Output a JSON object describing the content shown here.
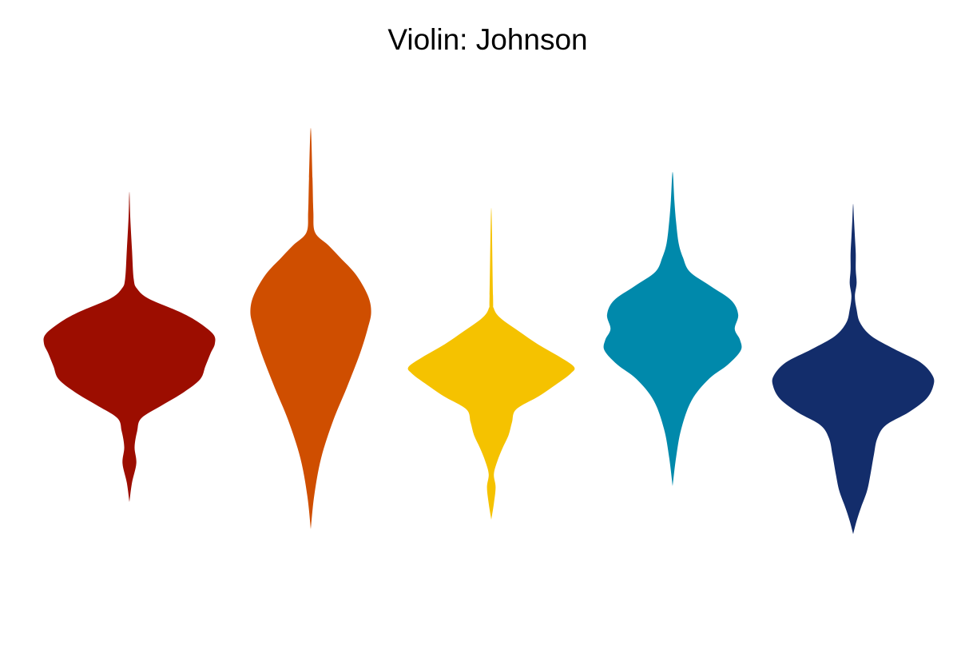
{
  "chart_data": {
    "type": "violin",
    "title": "Violin: Johnson",
    "xlabel": "",
    "ylabel": "",
    "axes_visible": false,
    "grid": false,
    "legend": "none",
    "ylim": [
      0,
      100
    ],
    "series": [
      {
        "color": "#9c0d00",
        "min": 4,
        "max": 100,
        "profile": [
          [
            4,
            0.0
          ],
          [
            10,
            0.03
          ],
          [
            16,
            0.08
          ],
          [
            21,
            0.06
          ],
          [
            26,
            0.09
          ],
          [
            30,
            0.14
          ],
          [
            34,
            0.38
          ],
          [
            38,
            0.63
          ],
          [
            42,
            0.82
          ],
          [
            46,
            0.88
          ],
          [
            50,
            0.94
          ],
          [
            53,
            0.99
          ],
          [
            56,
            0.97
          ],
          [
            60,
            0.78
          ],
          [
            63,
            0.57
          ],
          [
            67,
            0.22
          ],
          [
            70,
            0.09
          ],
          [
            73,
            0.05
          ],
          [
            82,
            0.03
          ],
          [
            92,
            0.01
          ],
          [
            100,
            0.0
          ]
        ]
      },
      {
        "color": "#cf4e00",
        "min": 4,
        "max": 100,
        "profile": [
          [
            4,
            0.0
          ],
          [
            12,
            0.04
          ],
          [
            21,
            0.12
          ],
          [
            30,
            0.26
          ],
          [
            38,
            0.42
          ],
          [
            46,
            0.57
          ],
          [
            52,
            0.66
          ],
          [
            56,
            0.7
          ],
          [
            60,
            0.66
          ],
          [
            65,
            0.52
          ],
          [
            69,
            0.34
          ],
          [
            72,
            0.2
          ],
          [
            75,
            0.05
          ],
          [
            80,
            0.03
          ],
          [
            88,
            0.02
          ],
          [
            100,
            0.0
          ]
        ]
      },
      {
        "color": "#f5c200",
        "min": 4,
        "max": 100,
        "profile": [
          [
            4,
            0.0
          ],
          [
            9,
            0.03
          ],
          [
            14,
            0.05
          ],
          [
            18,
            0.03
          ],
          [
            22,
            0.07
          ],
          [
            26,
            0.13
          ],
          [
            30,
            0.2
          ],
          [
            34,
            0.24
          ],
          [
            38,
            0.29
          ],
          [
            42,
            0.55
          ],
          [
            46,
            0.77
          ],
          [
            49,
            0.92
          ],
          [
            51,
            0.96
          ],
          [
            54,
            0.8
          ],
          [
            58,
            0.54
          ],
          [
            62,
            0.32
          ],
          [
            66,
            0.11
          ],
          [
            69,
            0.03
          ],
          [
            73,
            0.02
          ],
          [
            100,
            0.0
          ]
        ]
      },
      {
        "color": "#0089ab",
        "min": 12,
        "max": 100,
        "profile": [
          [
            12,
            0.0
          ],
          [
            20,
            0.04
          ],
          [
            28,
            0.1
          ],
          [
            36,
            0.22
          ],
          [
            42,
            0.42
          ],
          [
            46,
            0.64
          ],
          [
            50,
            0.79
          ],
          [
            53,
            0.78
          ],
          [
            56,
            0.72
          ],
          [
            60,
            0.76
          ],
          [
            64,
            0.68
          ],
          [
            68,
            0.44
          ],
          [
            72,
            0.2
          ],
          [
            76,
            0.12
          ],
          [
            80,
            0.07
          ],
          [
            86,
            0.04
          ],
          [
            92,
            0.02
          ],
          [
            100,
            0.0
          ]
        ]
      },
      {
        "color": "#132d6b",
        "min": 0,
        "max": 100,
        "profile": [
          [
            0,
            0.0
          ],
          [
            4,
            0.04
          ],
          [
            8,
            0.09
          ],
          [
            13,
            0.16
          ],
          [
            18,
            0.2
          ],
          [
            24,
            0.24
          ],
          [
            29,
            0.28
          ],
          [
            33,
            0.38
          ],
          [
            37,
            0.65
          ],
          [
            41,
            0.85
          ],
          [
            45,
            0.93
          ],
          [
            48,
            0.92
          ],
          [
            52,
            0.78
          ],
          [
            56,
            0.48
          ],
          [
            60,
            0.21
          ],
          [
            64,
            0.08
          ],
          [
            68,
            0.04
          ],
          [
            72,
            0.02
          ],
          [
            76,
            0.04
          ],
          [
            80,
            0.03
          ],
          [
            85,
            0.03
          ],
          [
            90,
            0.02
          ],
          [
            95,
            0.01
          ],
          [
            100,
            0.0
          ]
        ]
      }
    ]
  }
}
